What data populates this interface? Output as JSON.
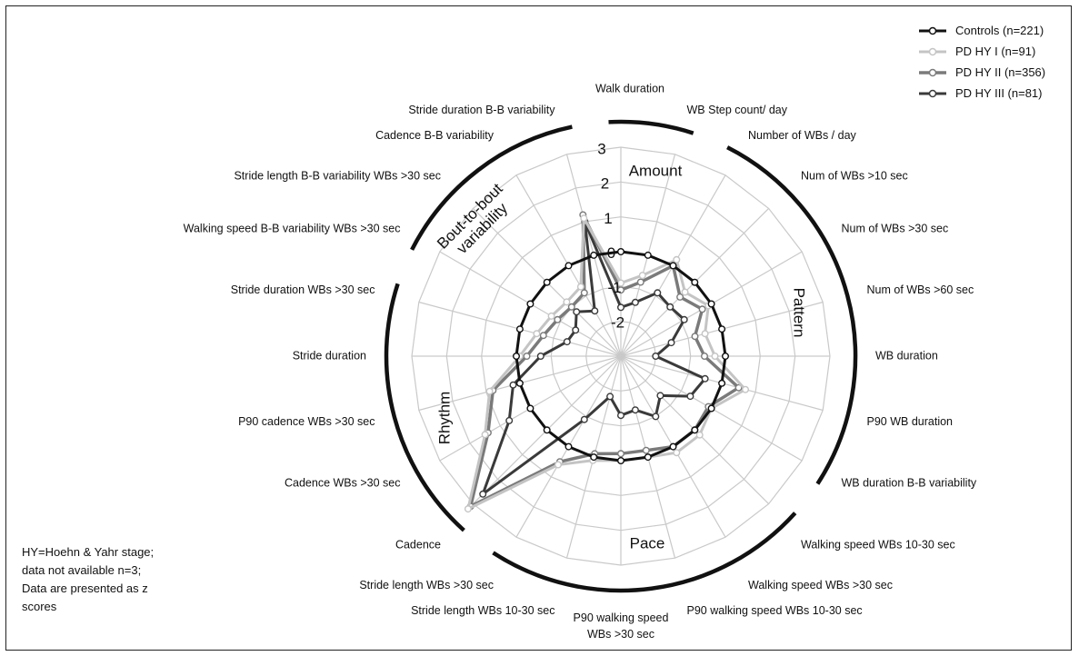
{
  "chart_data": {
    "type": "radar",
    "axis_labels": [
      "Walk duration",
      "WB Step count/ day",
      "Number of WBs / day",
      "Num of WBs >10 sec",
      "Num of WBs >30 sec",
      "Num of WBs >60 sec",
      "WB duration",
      "P90 WB duration",
      "WB duration B-B variability",
      "Walking speed WBs 10-30 sec",
      "Walking speed WBs >30 sec",
      "P90 walking speed WBs 10-30 sec",
      "P90 walking speed WBs >30 sec",
      "Stride length WBs 10-30 sec",
      "Stride length WBs >30 sec",
      "Cadence",
      "Cadence WBs >30 sec",
      "P90 cadence WBs >30 sec",
      "Stride duration",
      "Stride duration WBs >30 sec",
      "Walking speed B-B variability WBs >30 sec",
      "Stride length B-B variability WBs >30 sec",
      "Cadence B-B variability",
      "Stride duration B-B variability"
    ],
    "radial_ticks": [
      "3",
      "2",
      "1",
      "0",
      "-1",
      "-2"
    ],
    "rlim": [
      -3,
      3
    ],
    "domains": [
      {
        "name": "Amount",
        "axes": [
          0,
          1
        ]
      },
      {
        "name": "Pattern",
        "axes": [
          2,
          8
        ]
      },
      {
        "name": "Pace",
        "axes": [
          9,
          14
        ]
      },
      {
        "name": "Rhythm",
        "axes": [
          15,
          19
        ]
      },
      {
        "name": "Bout-to-bout variability",
        "axes": [
          20,
          23
        ]
      }
    ],
    "series": [
      {
        "name": "Controls (n=221)",
        "color": "#111111",
        "width": 3,
        "values": [
          0,
          0,
          0,
          0,
          0,
          0,
          0,
          0,
          0,
          0,
          0,
          0,
          0,
          0,
          0,
          0,
          0,
          0,
          0,
          0,
          0,
          0,
          0,
          0
        ]
      },
      {
        "name": "PD HY I (n=91)",
        "color": "#c4c4c4",
        "width": 3,
        "values": [
          -0.9,
          -0.6,
          0.2,
          -0.4,
          -0.1,
          -0.5,
          -0.3,
          0.7,
          0.0,
          0.2,
          0.2,
          0.0,
          0.0,
          0.1,
          0.6,
          3.2,
          1.5,
          0.9,
          -0.1,
          -0.5,
          -0.7,
          -0.8,
          -0.7,
          1.1
        ]
      },
      {
        "name": "PD HY II (n=356)",
        "color": "#7a7a7a",
        "width": 3.5,
        "values": [
          -1.1,
          -0.8,
          0.0,
          -0.6,
          -0.3,
          -0.8,
          -0.6,
          0.5,
          -0.1,
          0.0,
          0.0,
          -0.2,
          -0.2,
          -0.1,
          0.5,
          3.1,
          1.4,
          0.8,
          -0.3,
          -0.7,
          -0.9,
          -1.0,
          -0.9,
          1.2
        ]
      },
      {
        "name": "PD HY III (n=81)",
        "color": "#3a3a3a",
        "width": 3,
        "values": [
          -1.6,
          -1.4,
          -0.9,
          -1.0,
          -0.9,
          -1.5,
          -2.0,
          -0.5,
          -0.7,
          -1.4,
          -1.0,
          -1.4,
          -1.3,
          -1.8,
          -0.9,
          2.6,
          0.7,
          0.2,
          -0.7,
          -1.4,
          -1.5,
          -1.2,
          -1.5,
          1.0
        ]
      }
    ],
    "legend_position": "top-right"
  },
  "note": "HY=Hoehn & Yahr stage; data not available n=3; Data are presented as z scores"
}
